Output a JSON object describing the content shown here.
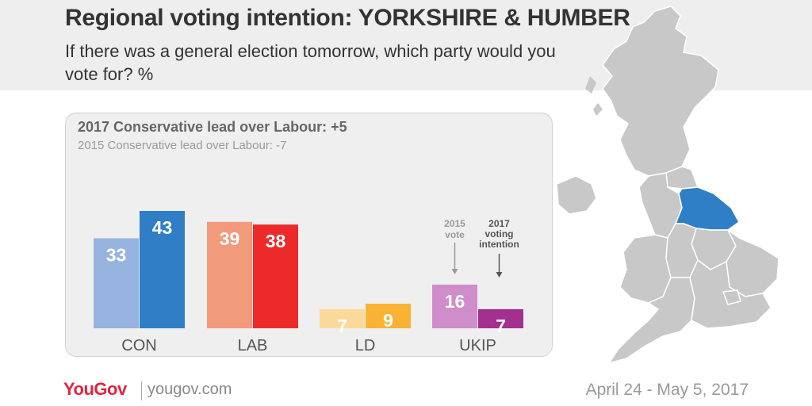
{
  "header": {
    "title": "Regional voting intention: YORKSHIRE & HUMBER",
    "subtitle": "If there was a general election tomorrow, which party would you vote for? %"
  },
  "panel": {
    "lead_2017": "2017 Conservative lead over Labour: +5",
    "lead_2015": "2015 Conservative lead over Labour: -7"
  },
  "annotations": {
    "vote_2015": [
      "2015",
      "vote"
    ],
    "intention_2017": [
      "2017",
      "voting",
      "intention"
    ]
  },
  "footer": {
    "brand": "YouGov",
    "website": "yougov.com",
    "dates": "April 24 - May 5, 2017"
  },
  "map": {
    "highlighted_region": "Yorkshire & Humber",
    "highlight_color": "#2e7fc6",
    "base_color": "#c8c8c8"
  },
  "chart_data": {
    "type": "bar",
    "categories": [
      "CON",
      "LAB",
      "LD",
      "UKIP"
    ],
    "series": [
      {
        "name": "2015 vote",
        "values": [
          33,
          39,
          7,
          16
        ]
      },
      {
        "name": "2017 voting intention",
        "values": [
          43,
          38,
          9,
          7
        ]
      }
    ],
    "colors": {
      "CON": [
        "#97b3df",
        "#2f7ec6"
      ],
      "LAB": [
        "#f29a7c",
        "#ec2a2a"
      ],
      "LD": [
        "#fbd99b",
        "#f9b233"
      ],
      "UKIP": [
        "#cf8ec9",
        "#a3308f"
      ]
    },
    "ylim": [
      0,
      43
    ],
    "grid": false,
    "legend": "annotations above UKIP bars"
  }
}
